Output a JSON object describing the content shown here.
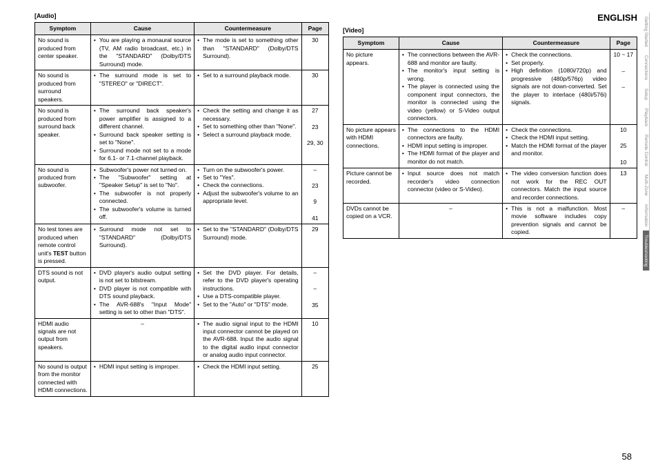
{
  "language_label": "ENGLISH",
  "page_number": "58",
  "side_nav": [
    "Getting Started",
    "Connections",
    "Setup",
    "Playback",
    "Remote Control",
    "Multi-Zone",
    "Information",
    "Troubleshooting"
  ],
  "side_nav_active_index": 7,
  "audio": {
    "label": "[Audio]",
    "headers": [
      "Symptom",
      "Cause",
      "Countermeasure",
      "Page"
    ],
    "rows": [
      {
        "symptom": "No sound is produced from center speaker.",
        "cause_items": [
          "You are playing a monaural source (TV, AM radio broadcast, etc.) in the \"STANDARD\" (Dolby/DTS Surround) mode."
        ],
        "counter_items": [
          "The mode is set to something other than \"STANDARD\" (Dolby/DTS Surround)."
        ],
        "pages": [
          "30"
        ]
      },
      {
        "symptom": "No sound is produced from surround speakers.",
        "cause_items": [
          "The surround mode is set to \"STEREO\" or \"DIRECT\"."
        ],
        "counter_items": [
          "Set to a surround playback mode."
        ],
        "pages": [
          "30"
        ]
      },
      {
        "symptom": "No sound is produced from surround back speaker.",
        "cause_items": [
          "The surround back speaker's power amplifier is assigned to a different channel.",
          "Surround back speaker setting is set to \"None\".",
          "Surround mode not set to a mode for 6.1- or 7.1-channel playback."
        ],
        "counter_items": [
          "Check the setting and change it as necessary.",
          "Set to something other than \"None\".",
          "Select a surround playback mode."
        ],
        "pages": [
          "27",
          "23",
          "29, 30"
        ]
      },
      {
        "symptom": "No sound is produced from subwoofer.",
        "cause_items": [
          "Subwoofer's power not turned on.",
          "The \"Subwoofer\" setting at \"Speaker Setup\" is set to \"No\".",
          "The subwoofer is not properly connected.",
          "The subwoofer's volume is turned off."
        ],
        "counter_items": [
          "Turn on the subwoofer's power.",
          "Set to \"Yes\".",
          "Check the connections.",
          "Adjust the subwoofer's volume to an appropriate level."
        ],
        "pages": [
          "–",
          "23",
          "9",
          "41"
        ]
      },
      {
        "symptom_html": "No test tones are produced when remote control unit's <b>TEST</b> button is pressed.",
        "cause_items": [
          "Surround mode not set to \"STANDARD\" (Dolby/DTS Surround)."
        ],
        "counter_items": [
          "Set to the \"STANDARD\" (Dolby/DTS Surround) mode."
        ],
        "pages": [
          "29"
        ]
      },
      {
        "symptom": "DTS sound is not output.",
        "cause_items": [
          "DVD player's audio output setting is not set to bitstream.",
          "DVD player is not compatible with DTS sound playback.",
          "The AVR-688's \"Input Mode\" setting is set to other than \"DTS\"."
        ],
        "counter_items": [
          "Set the DVD player. For details, refer to the DVD player's operating instructions.",
          "Use a DTS-compatible player.",
          "Set to the \"Auto\" or \"DTS\" mode."
        ],
        "pages": [
          "–",
          "–",
          "35"
        ]
      },
      {
        "symptom": "HDMI audio signals are not output from speakers.",
        "cause_dash": true,
        "counter_items": [
          "The audio signal input to the HDMI input connector cannot be played on the AVR-688. Input the audio signal to the digital audio input connector or analog audio input connector."
        ],
        "pages": [
          "10"
        ]
      },
      {
        "symptom": "No sound is output from the monitor connected with HDMI connections.",
        "cause_items": [
          "HDMI input setting is improper."
        ],
        "counter_items": [
          "Check the HDMI input setting."
        ],
        "pages": [
          "25"
        ]
      }
    ]
  },
  "video": {
    "label": "[Video]",
    "headers": [
      "Symptom",
      "Cause",
      "Countermeasure",
      "Page"
    ],
    "rows": [
      {
        "symptom": "No picture appears.",
        "cause_items": [
          "The connections between the AVR-688 and monitor are faulty.",
          "The monitor's input setting is wrong.",
          "The player is connected using the component input connectors, the monitor is connected using the video (yellow) or S-Video output connectors."
        ],
        "counter_items": [
          "Check the connections.",
          "Set properly.",
          "High definition (1080i/720p) and progressive (480p/576p) video signals are not down-converted. Set the player to interlace (480i/576i) signals."
        ],
        "pages": [
          "10 ~ 17",
          "–",
          "–"
        ]
      },
      {
        "symptom": "No picture appears with HDMI connections.",
        "cause_items": [
          "The connections to the HDMI connectors are faulty.",
          "HDMI input setting is improper.",
          "The HDMI format of the player and monitor do not match."
        ],
        "counter_items": [
          "Check the connections.",
          "Check the HDMI input setting.",
          "Match the HDMI format of the player and monitor."
        ],
        "pages": [
          "10",
          "25",
          "10"
        ]
      },
      {
        "symptom": "Picture cannot be recorded.",
        "cause_items": [
          "Input source does not match recorder's video connection connector (video or S-Video)."
        ],
        "counter_items": [
          "The video conversion function does not work for the REC OUT connectors. Match the input source and recorder connections."
        ],
        "pages": [
          "13"
        ]
      },
      {
        "symptom": "DVDs cannot be copied on a VCR.",
        "cause_dash": true,
        "counter_items": [
          "This is not a malfunction. Most movie software includes copy prevention signals and cannot be copied."
        ],
        "pages": [
          "–"
        ]
      }
    ]
  }
}
